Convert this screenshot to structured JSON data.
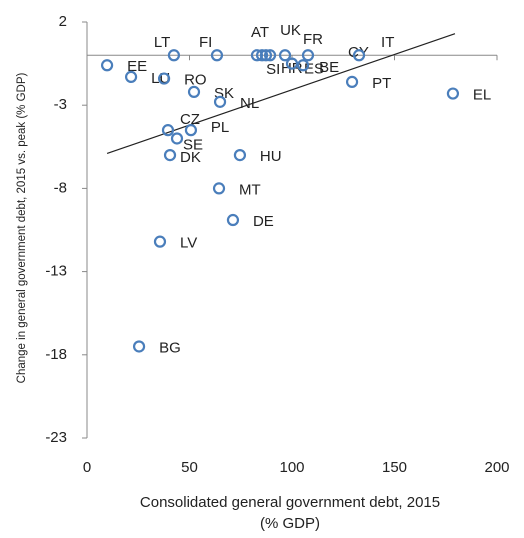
{
  "chart_data": {
    "type": "scatter",
    "xlabel": [
      "Consolidated general government debt, 2015",
      "(% GDP)"
    ],
    "ylabel": "Change in general government debt, 2015 vs. peak (% GDP)",
    "xlim": [
      0,
      200
    ],
    "ylim": [
      -23,
      2
    ],
    "xticks": [
      0,
      50,
      100,
      150,
      200
    ],
    "yticks": [
      -23,
      -18,
      -13,
      -8,
      -3,
      2
    ],
    "color": "#4a7ebb",
    "labels": [
      "EE",
      "LU",
      "RO",
      "LT",
      "FI",
      "AT",
      "SI",
      "HR",
      "UK",
      "FR",
      "CY",
      "IT",
      "ES",
      "BE",
      "SK",
      "NL",
      "CZ",
      "PL",
      "SE",
      "DK",
      "HU",
      "MT",
      "DE",
      "LV",
      "BG",
      "PT",
      "EL"
    ],
    "x": [
      9.8,
      21.5,
      37.6,
      42.4,
      63.4,
      82.9,
      85.4,
      87.3,
      89.3,
      96.6,
      107.8,
      132.7,
      100,
      105.4,
      52.2,
      64.9,
      39.5,
      50.7,
      43.9,
      40.5,
      74.6,
      64.4,
      71.2,
      35.6,
      25.4,
      129.3,
      178.5
    ],
    "values": [
      -0.6,
      -1.3,
      -1.4,
      0,
      0,
      0,
      0,
      0,
      0,
      0,
      0,
      0,
      -0.5,
      -0.6,
      -2.2,
      -2.8,
      -4.5,
      -4.5,
      -5,
      -6,
      -6,
      -8,
      -9.9,
      -11.2,
      -17.5,
      -1.6,
      -2.3
    ],
    "trendline": {
      "x": [
        9.8,
        179.5
      ],
      "y": [
        -5.9,
        1.3
      ]
    }
  }
}
